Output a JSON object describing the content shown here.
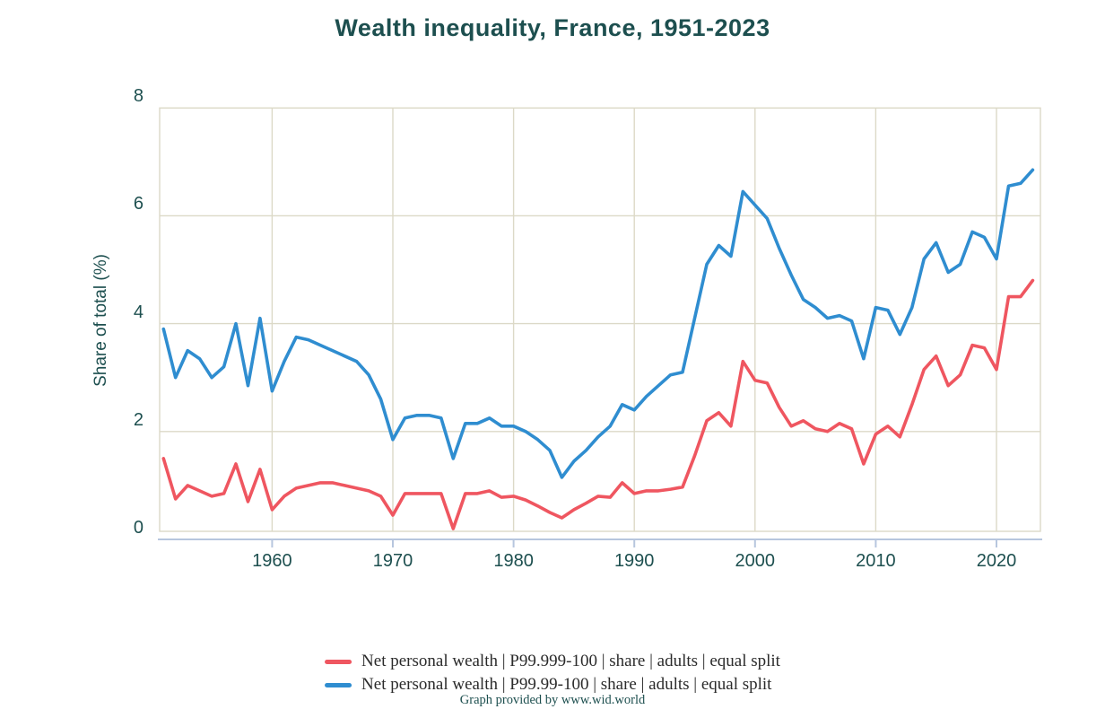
{
  "page": {
    "title": "Wealth inequality, France, 1951-2023",
    "footer": "Graph provided by www.wid.world"
  },
  "colors": {
    "heading_teal": "#1d4f4f",
    "axis_line": "#b7c6de",
    "gridline": "#dcd9c7",
    "series_red": "#ef5660",
    "series_blue": "#2f8dd0",
    "legend_text": "#2b2b2b"
  },
  "chart_data": {
    "type": "line",
    "title": "Wealth inequality, France, 1951-2023",
    "xlabel": "",
    "ylabel": "Share of total (%)",
    "footnote": "Graph provided by www.wid.world",
    "ylim": [
      0,
      8
    ],
    "xlim": [
      1951,
      2023
    ],
    "y_ticks": [
      0,
      2,
      4,
      6,
      8
    ],
    "x_ticks": [
      1960,
      1970,
      1980,
      1990,
      2000,
      2010,
      2020
    ],
    "grid": true,
    "legend_position": "bottom",
    "x": [
      1951,
      1952,
      1953,
      1954,
      1955,
      1956,
      1957,
      1958,
      1959,
      1960,
      1961,
      1962,
      1963,
      1964,
      1965,
      1966,
      1967,
      1968,
      1969,
      1970,
      1971,
      1972,
      1973,
      1974,
      1975,
      1976,
      1977,
      1978,
      1979,
      1980,
      1981,
      1982,
      1983,
      1984,
      1985,
      1986,
      1987,
      1988,
      1989,
      1990,
      1991,
      1992,
      1993,
      1994,
      1995,
      1996,
      1997,
      1998,
      1999,
      2000,
      2001,
      2002,
      2003,
      2004,
      2005,
      2006,
      2007,
      2008,
      2009,
      2010,
      2011,
      2012,
      2013,
      2014,
      2015,
      2016,
      2017,
      2018,
      2019,
      2020,
      2021,
      2022,
      2023
    ],
    "series": [
      {
        "name": "Net personal wealth | P99.999-100 | share | adults | equal split",
        "color": "#ef5660",
        "values": [
          1.5,
          0.75,
          1.0,
          0.9,
          0.8,
          0.85,
          1.4,
          0.7,
          1.3,
          0.55,
          0.8,
          0.95,
          1.0,
          1.05,
          1.05,
          1.0,
          0.95,
          0.9,
          0.8,
          0.45,
          0.85,
          0.85,
          0.85,
          0.85,
          0.2,
          0.85,
          0.85,
          0.9,
          0.78,
          0.8,
          0.73,
          0.62,
          0.5,
          0.4,
          0.55,
          0.67,
          0.8,
          0.78,
          1.05,
          0.85,
          0.9,
          0.9,
          0.93,
          0.97,
          1.55,
          2.2,
          2.35,
          2.1,
          3.3,
          2.95,
          2.9,
          2.45,
          2.1,
          2.2,
          2.05,
          2.0,
          2.15,
          2.05,
          1.4,
          1.95,
          2.1,
          1.9,
          2.5,
          3.15,
          3.4,
          2.85,
          3.05,
          3.6,
          3.55,
          3.15,
          4.5,
          4.5,
          4.8
        ]
      },
      {
        "name": "Net personal wealth | P99.99-100 | share | adults | equal split",
        "color": "#2f8dd0",
        "values": [
          3.9,
          3.0,
          3.5,
          3.35,
          3.0,
          3.2,
          4.0,
          2.85,
          4.1,
          2.75,
          3.3,
          3.75,
          3.7,
          3.6,
          3.5,
          3.4,
          3.3,
          3.05,
          2.6,
          1.85,
          2.25,
          2.3,
          2.3,
          2.25,
          1.5,
          2.15,
          2.15,
          2.25,
          2.1,
          2.1,
          2.0,
          1.85,
          1.65,
          1.15,
          1.45,
          1.65,
          1.9,
          2.1,
          2.5,
          2.4,
          2.65,
          2.85,
          3.05,
          3.1,
          4.1,
          5.1,
          5.45,
          5.25,
          6.45,
          6.2,
          5.95,
          5.4,
          4.9,
          4.45,
          4.3,
          4.1,
          4.15,
          4.05,
          3.35,
          4.3,
          4.25,
          3.8,
          4.3,
          5.2,
          5.5,
          4.95,
          5.1,
          5.7,
          5.6,
          5.2,
          6.55,
          6.6,
          6.85
        ]
      }
    ]
  }
}
